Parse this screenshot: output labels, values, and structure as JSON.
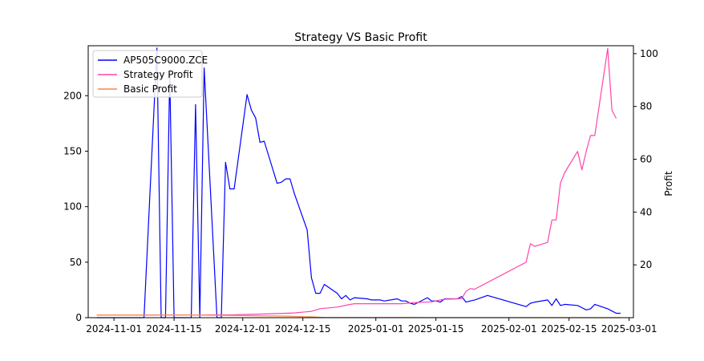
{
  "chart_data": {
    "type": "line",
    "title": "Strategy VS Basic Profit",
    "xlabel": "",
    "ylabel": "",
    "y2label": "Profit",
    "x_tick_labels": [
      "2024-11-01",
      "2024-11-15",
      "2024-12-01",
      "2024-12-15",
      "2025-01-01",
      "2025-01-15",
      "2025-02-01",
      "2025-02-15",
      "2025-03-01"
    ],
    "x_tick_dates": [
      "2024-11-01",
      "2024-11-15",
      "2024-12-01",
      "2024-12-15",
      "2025-01-01",
      "2025-01-15",
      "2025-02-01",
      "2025-02-15",
      "2025-03-01"
    ],
    "xlim": [
      "2024-10-26",
      "2025-03-02"
    ],
    "ylim": [
      0,
      245
    ],
    "y_ticks": [
      0,
      50,
      100,
      150,
      200
    ],
    "y2lim": [
      0,
      103
    ],
    "y2_ticks": [
      20,
      40,
      60,
      80,
      100
    ],
    "legend_position": "upper-left",
    "grid": false,
    "series": [
      {
        "name": "AP505C9000.ZCE",
        "axis": "left",
        "color": "#0000ff",
        "points": [
          [
            "2024-10-28",
            0
          ],
          [
            "2024-11-01",
            0
          ],
          [
            "2024-11-05",
            0
          ],
          [
            "2024-11-08",
            0
          ],
          [
            "2024-11-11",
            243
          ],
          [
            "2024-11-12",
            0
          ],
          [
            "2024-11-13",
            0
          ],
          [
            "2024-11-14",
            220
          ],
          [
            "2024-11-15",
            0
          ],
          [
            "2024-11-18",
            0
          ],
          [
            "2024-11-19",
            0
          ],
          [
            "2024-11-20",
            192
          ],
          [
            "2024-11-21",
            0
          ],
          [
            "2024-11-22",
            225
          ],
          [
            "2024-11-25",
            0
          ],
          [
            "2024-11-26",
            0
          ],
          [
            "2024-11-27",
            140
          ],
          [
            "2024-11-28",
            116
          ],
          [
            "2024-11-29",
            116
          ],
          [
            "2024-12-02",
            201
          ],
          [
            "2024-12-03",
            187
          ],
          [
            "2024-12-04",
            180
          ],
          [
            "2024-12-05",
            158
          ],
          [
            "2024-12-06",
            159
          ],
          [
            "2024-12-09",
            121
          ],
          [
            "2024-12-10",
            122
          ],
          [
            "2024-12-11",
            125
          ],
          [
            "2024-12-12",
            125
          ],
          [
            "2024-12-13",
            112
          ],
          [
            "2024-12-16",
            79
          ],
          [
            "2024-12-17",
            36
          ],
          [
            "2024-12-18",
            22
          ],
          [
            "2024-12-19",
            22
          ],
          [
            "2024-12-20",
            30
          ],
          [
            "2024-12-23",
            22
          ],
          [
            "2024-12-24",
            17
          ],
          [
            "2024-12-25",
            20
          ],
          [
            "2024-12-26",
            16
          ],
          [
            "2024-12-27",
            18
          ],
          [
            "2024-12-30",
            17
          ],
          [
            "2024-12-31",
            16
          ],
          [
            "2025-01-02",
            16
          ],
          [
            "2025-01-03",
            15
          ],
          [
            "2025-01-06",
            17
          ],
          [
            "2025-01-07",
            15
          ],
          [
            "2025-01-08",
            15
          ],
          [
            "2025-01-09",
            13
          ],
          [
            "2025-01-10",
            12
          ],
          [
            "2025-01-13",
            18
          ],
          [
            "2025-01-14",
            15
          ],
          [
            "2025-01-15",
            15
          ],
          [
            "2025-01-16",
            14
          ],
          [
            "2025-01-17",
            17
          ],
          [
            "2025-01-20",
            17
          ],
          [
            "2025-01-21",
            19
          ],
          [
            "2025-01-22",
            14
          ],
          [
            "2025-01-23",
            15
          ],
          [
            "2025-01-24",
            16
          ],
          [
            "2025-01-27",
            20
          ],
          [
            "2025-02-05",
            10
          ],
          [
            "2025-02-06",
            13
          ],
          [
            "2025-02-07",
            14
          ],
          [
            "2025-02-10",
            16
          ],
          [
            "2025-02-11",
            11
          ],
          [
            "2025-02-12",
            17
          ],
          [
            "2025-02-13",
            11
          ],
          [
            "2025-02-14",
            12
          ],
          [
            "2025-02-17",
            11
          ],
          [
            "2025-02-18",
            9
          ],
          [
            "2025-02-19",
            7
          ],
          [
            "2025-02-20",
            8
          ],
          [
            "2025-02-21",
            12
          ],
          [
            "2025-02-24",
            8
          ],
          [
            "2025-02-25",
            6
          ],
          [
            "2025-02-26",
            4
          ],
          [
            "2025-02-27",
            4
          ]
        ]
      },
      {
        "name": "Strategy Profit",
        "axis": "right",
        "color": "#ff44aa",
        "points": [
          [
            "2024-10-28",
            1.0
          ],
          [
            "2024-11-15",
            1.0
          ],
          [
            "2024-11-29",
            1.1
          ],
          [
            "2024-12-06",
            1.4
          ],
          [
            "2024-12-13",
            1.8
          ],
          [
            "2024-12-17",
            2.4
          ],
          [
            "2024-12-19",
            3.4
          ],
          [
            "2024-12-23",
            4.0
          ],
          [
            "2024-12-26",
            5.0
          ],
          [
            "2024-12-27",
            5.3
          ],
          [
            "2025-01-07",
            5.3
          ],
          [
            "2025-01-10",
            5.7
          ],
          [
            "2025-01-14",
            6.0
          ],
          [
            "2025-01-16",
            6.7
          ],
          [
            "2025-01-17",
            7.0
          ],
          [
            "2025-01-21",
            7.2
          ],
          [
            "2025-01-22",
            10.0
          ],
          [
            "2025-01-23",
            11.0
          ],
          [
            "2025-01-24",
            10.8
          ],
          [
            "2025-02-05",
            21.0
          ],
          [
            "2025-02-06",
            28.0
          ],
          [
            "2025-02-07",
            27.0
          ],
          [
            "2025-02-10",
            28.5
          ],
          [
            "2025-02-11",
            37.0
          ],
          [
            "2025-02-12",
            37.0
          ],
          [
            "2025-02-13",
            51.0
          ],
          [
            "2025-02-14",
            55.0
          ],
          [
            "2025-02-17",
            63.0
          ],
          [
            "2025-02-18",
            56.0
          ],
          [
            "2025-02-19",
            63.0
          ],
          [
            "2025-02-20",
            69.0
          ],
          [
            "2025-02-21",
            69.0
          ],
          [
            "2025-02-24",
            102.0
          ],
          [
            "2025-02-25",
            78.5
          ],
          [
            "2025-02-26",
            75.5
          ]
        ]
      },
      {
        "name": "Basic Profit",
        "axis": "right",
        "color": "#f08a4b",
        "points": [
          [
            "2024-10-28",
            1.0
          ],
          [
            "2024-11-20",
            1.0
          ],
          [
            "2024-12-10",
            0.6
          ],
          [
            "2024-12-17",
            0.3
          ],
          [
            "2024-12-20",
            0.1
          ],
          [
            "2025-01-15",
            0.05
          ],
          [
            "2025-02-27",
            0.0
          ]
        ]
      }
    ]
  }
}
